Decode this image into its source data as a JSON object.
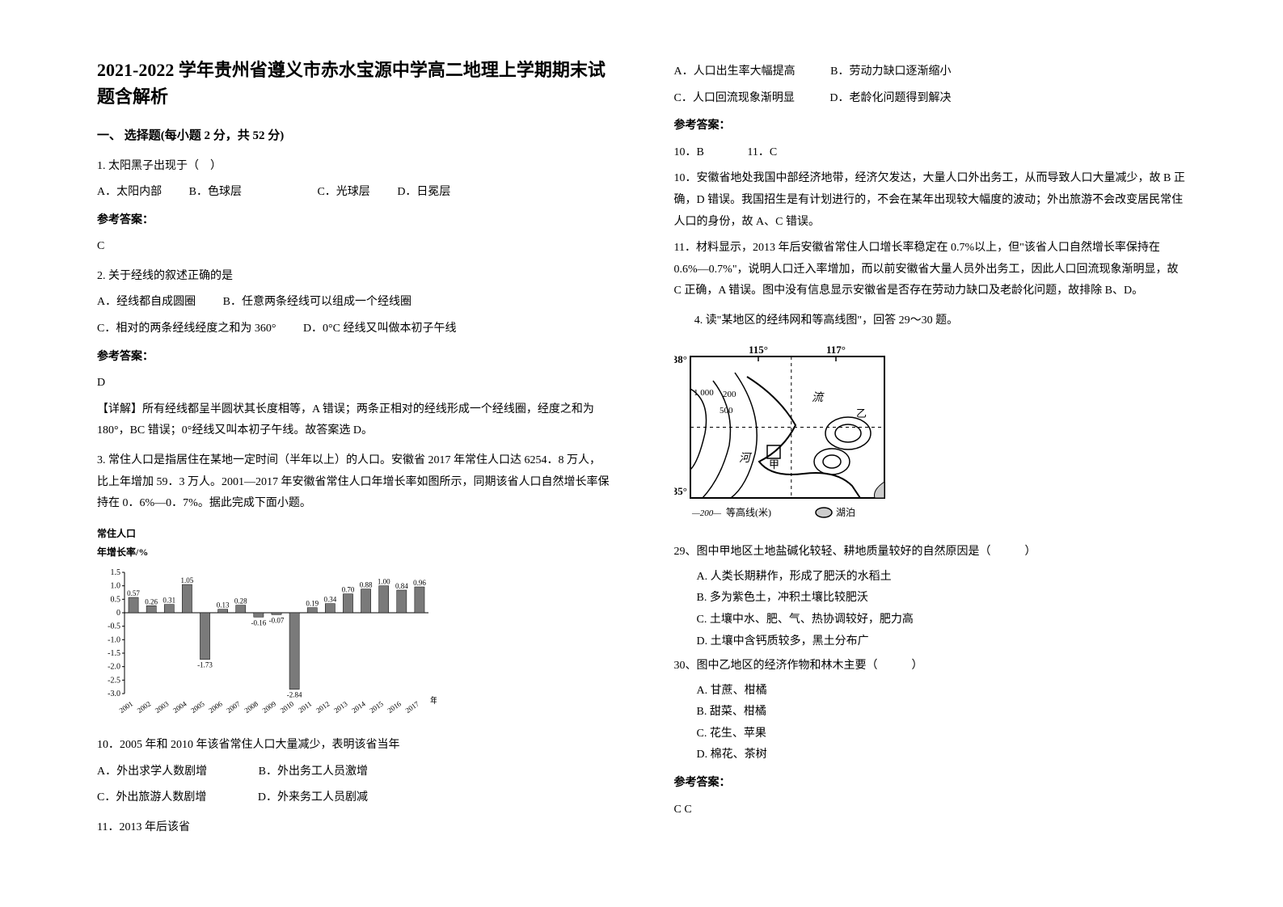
{
  "header": {
    "title": "2021-2022 学年贵州省遵义市赤水宝源中学高二地理上学期期末试题含解析"
  },
  "section1": {
    "heading": "一、 选择题(每小题 2 分，共 52 分)"
  },
  "q1": {
    "stem": "1. 太阳黑子出现于（　）",
    "optA": "A．太阳内部",
    "optB": "B．色球层",
    "optC": "C．光球层",
    "optD": "D．日冕层",
    "ansLabel": "参考答案：",
    "ans": "C"
  },
  "q2": {
    "stem": "2. 关于经线的叙述正确的是",
    "optA": "A．经线都自成圆圈",
    "optB": "B．任意两条经线可以组成一个经线圈",
    "optC": "C．相对的两条经线经度之和为 360°",
    "optD": "D．0°C 经线又叫做本初子午线",
    "ansLabel": "参考答案：",
    "ans": "D",
    "explain": "【详解】所有经线都呈半圆状其长度相等，A 错误；两条正相对的经线形成一个经线圈，经度之和为 180°，BC 错误；0°经线又叫本初子午线。故答案选 D。"
  },
  "q3": {
    "intro": "3. 常住人口是指居住在某地一定时间（半年以上）的人口。安徽省 2017 年常住人口达 6254．8 万人，比上年增加 59．3 万人。2001—2017 年安徽省常住人口年增长率如图所示，同期该省人口自然增长率保持在 0．6%—0．7%。据此完成下面小题。"
  },
  "chart": {
    "title": "常住人口\n年增长率/%",
    "years": [
      "2001",
      "2002",
      "2003",
      "2004",
      "2005",
      "2006",
      "2007",
      "2008",
      "2009",
      "2010",
      "2011",
      "2012",
      "2013",
      "2014",
      "2015",
      "2016",
      "2017"
    ],
    "values": [
      0.57,
      0.26,
      0.31,
      1.05,
      -1.73,
      0.13,
      0.28,
      -0.16,
      -0.07,
      -2.84,
      0.19,
      0.34,
      0.7,
      0.88,
      1.0,
      0.84,
      0.96
    ],
    "labels": [
      "0.57",
      "0.26",
      "0.31",
      "1.05",
      "-1.73",
      "0.13",
      "0.28",
      "-0.16",
      "-0.07",
      "-2.84",
      "0.19",
      "0.34",
      "0.70",
      "0.88",
      "1.00",
      "0.84",
      "0.96"
    ],
    "ylim": [
      -3.0,
      1.5
    ],
    "yticks": [
      1.5,
      1.0,
      0.5,
      0,
      -0.5,
      -1.0,
      -1.5,
      -2.0,
      -2.5,
      -3.0
    ],
    "bar_color": "#7a7a7a",
    "bar_stroke": "#000000",
    "axis_color": "#000000",
    "text_color": "#000000",
    "font_size": 10,
    "bar_width": 0.55,
    "year_label": "年"
  },
  "q10": {
    "stem": "10．2005 年和 2010 年该省常住人口大量减少，表明该省当年",
    "optA": "A．外出求学人数剧增",
    "optB": "B．外出务工人员激增",
    "optC": "C．外出旅游人数剧增",
    "optD": "D．外来务工人员剧减"
  },
  "q11": {
    "stem": "11．2013 年后该省",
    "optA": "A．人口出生率大幅提高",
    "optB": "B．劳动力缺口逐渐缩小",
    "optC": "C．人口回流现象渐明显",
    "optD": "D．老龄化问题得到解决",
    "ansLabel": "参考答案：",
    "ans10": "10．B",
    "ans11": "11．C",
    "expl10": "10．安徽省地处我国中部经济地带，经济欠发达，大量人口外出务工，从而导致人口大量减少，故 B 正确，D 错误。我国招生是有计划进行的，不会在某年出现较大幅度的波动；外出旅游不会改变居民常住人口的身份，故 A、C 错误。",
    "expl11": "11．材料显示，2013 年后安徽省常住人口增长率稳定在 0.7%以上，但\"该省人口自然增长率保持在 0.6%—0.7%\"，说明人口迁入率增加，而以前安徽省大量人员外出务工，因此人口回流现象渐明显，故 C 正确，A 错误。图中没有信息显示安徽省是否存在劳动力缺口及老龄化问题，故排除 B、D。"
  },
  "q4": {
    "intro": "4. 读\"某地区的经纬网和等高线图\"，回答 29～30 题。"
  },
  "map": {
    "lon_left": "115°",
    "lon_right": "117°",
    "lat_top": "38°",
    "lat_bottom": "35°",
    "contours": [
      "1 000",
      "200",
      "500"
    ],
    "river_label": "河",
    "flow_label": "流",
    "jia_label": "甲",
    "yi_label": "乙",
    "legend_contour": "等高线(米)",
    "legend_contour_val": "200",
    "legend_lake": "湖泊",
    "line_color": "#000000",
    "background": "#ffffff",
    "lake_fill": "#000000"
  },
  "q29": {
    "stem": "29、图中甲地区土地盐碱化较轻、耕地质量较好的自然原因是（　　　）",
    "optA": "A. 人类长期耕作，形成了肥沃的水稻土",
    "optB": "B. 多为紫色土，冲积土壤比较肥沃",
    "optC": "C. 土壤中水、肥、气、热协调较好，肥力高",
    "optD": "D. 土壤中含钙质较多，黑土分布广"
  },
  "q30": {
    "stem": "30、图中乙地区的经济作物和林木主要（　　　）",
    "optA": "A. 甘蔗、柑橘",
    "optB": "B. 甜菜、柑橘",
    "optC": "C. 花生、苹果",
    "optD": "D. 棉花、茶树",
    "ansLabel": "参考答案：",
    "ans": "C C"
  }
}
